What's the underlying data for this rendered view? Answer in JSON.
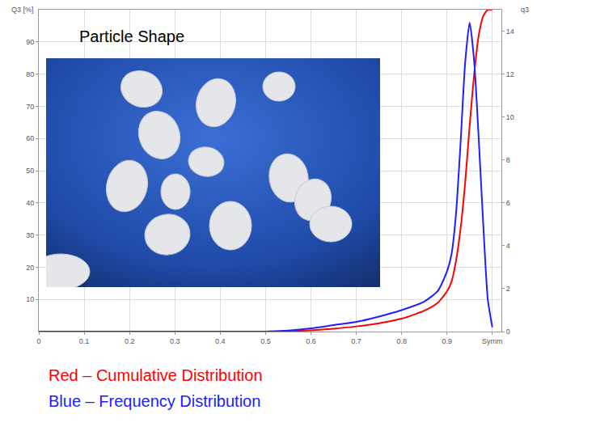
{
  "chart_data": {
    "type": "line",
    "x": [
      0,
      0.1,
      0.2,
      0.3,
      0.4,
      0.5,
      0.55,
      0.6,
      0.65,
      0.7,
      0.75,
      0.8,
      0.85,
      0.88,
      0.9,
      0.91,
      0.92,
      0.93,
      0.94,
      0.95,
      0.96,
      0.97,
      0.98,
      0.99,
      1.0
    ],
    "series": [
      {
        "name": "Red – Cumulative Distribution",
        "color": "#ff0000",
        "values": [
          0,
          0,
          0,
          0,
          0,
          0,
          0.1,
          0.4,
          0.9,
          1.6,
          2.6,
          4,
          6.5,
          9,
          12.5,
          15.5,
          22,
          32,
          46,
          64,
          80,
          92,
          98,
          100,
          100
        ]
      },
      {
        "name": "Blue – Frequency Distribution",
        "color": "#2020ff",
        "axis": "y2",
        "values": [
          0,
          0,
          0,
          0,
          0,
          0,
          0.05,
          0.15,
          0.3,
          0.45,
          0.7,
          1.0,
          1.4,
          1.9,
          2.8,
          3.6,
          5.5,
          8.8,
          12.5,
          14.4,
          12.6,
          9,
          5,
          1.5,
          0.2
        ]
      }
    ],
    "xlim": [
      0,
      1.02
    ],
    "xticks": [
      0,
      0.1,
      0.2,
      0.3,
      0.4,
      0.5,
      0.6,
      0.7,
      0.8,
      0.9,
      {
        "value": 1,
        "label": "Symm"
      }
    ],
    "ylim": [
      0,
      100
    ],
    "yticks": [
      10,
      20,
      30,
      40,
      50,
      60,
      70,
      80,
      90
    ],
    "y2lim": [
      0,
      15
    ],
    "y2ticks": [
      0,
      2,
      4,
      6,
      8,
      10,
      12,
      14
    ],
    "y_label": "Q3 [%]",
    "y2_label": "q3",
    "annotations": [
      "Particle Shape"
    ],
    "grid": true,
    "legend": "bottom"
  }
}
